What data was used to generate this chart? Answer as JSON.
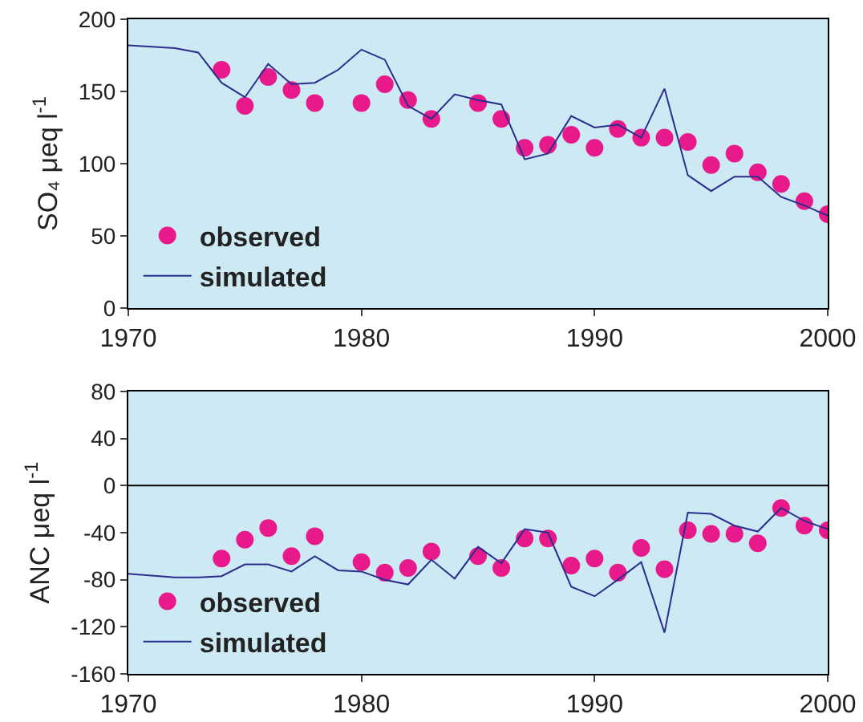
{
  "chart_data": [
    {
      "type": "line",
      "ylabel": "SO₄ μeq l$^{-1}$",
      "xlim": [
        1970,
        2000
      ],
      "xticks": [
        1970,
        1980,
        1990,
        2000
      ],
      "ylim": [
        0,
        200
      ],
      "yticks": [
        0,
        50,
        100,
        150,
        200
      ],
      "grid": false,
      "legend": "bottom left",
      "series": [
        {
          "name": "observed",
          "type": "scatter",
          "marker": "circle",
          "color": "#e8198b",
          "x": [
            1974,
            1975,
            1976,
            1977,
            1978,
            1980,
            1981,
            1982,
            1983,
            1985,
            1986,
            1987,
            1988,
            1989,
            1990,
            1991,
            1992,
            1993,
            1994,
            1995,
            1996,
            1997,
            1998,
            1999,
            2000
          ],
          "values": [
            165,
            140,
            160,
            151,
            142,
            142,
            155,
            144,
            131,
            142,
            131,
            111,
            113,
            120,
            111,
            124,
            118,
            118,
            115,
            99,
            107,
            94,
            86,
            74,
            65
          ]
        },
        {
          "name": "simulated",
          "type": "line",
          "line_style": "solid",
          "color": "#2b2e8c",
          "x": [
            1970,
            1972,
            1973,
            1974,
            1975,
            1976,
            1977,
            1978,
            1979,
            1980,
            1981,
            1982,
            1983,
            1984,
            1985,
            1986,
            1987,
            1988,
            1989,
            1990,
            1991,
            1992,
            1993,
            1994,
            1995,
            1996,
            1997,
            1998,
            1999,
            2000
          ],
          "values": [
            182,
            180,
            177,
            156,
            146,
            169,
            155,
            156,
            165,
            179,
            172,
            140,
            131,
            148,
            144,
            141,
            103,
            107,
            133,
            125,
            127,
            118,
            152,
            92,
            81,
            91,
            91,
            77,
            71,
            64
          ]
        }
      ]
    },
    {
      "type": "line",
      "ylabel": "ANC μeq l$^{-1}$",
      "xlim": [
        1970,
        2000
      ],
      "xticks": [
        1970,
        1980,
        1990,
        2000
      ],
      "ylim": [
        -160,
        80
      ],
      "yticks": [
        -160,
        -120,
        -80,
        -40,
        0,
        40,
        80
      ],
      "grid": false,
      "legend": "bottom left",
      "ref_lines": [
        {
          "axis": "y",
          "value": 0,
          "color": "#000000"
        }
      ],
      "series": [
        {
          "name": "observed",
          "type": "scatter",
          "marker": "circle",
          "color": "#e8198b",
          "x": [
            1974,
            1975,
            1976,
            1977,
            1978,
            1980,
            1981,
            1982,
            1983,
            1985,
            1986,
            1987,
            1988,
            1989,
            1990,
            1991,
            1992,
            1993,
            1994,
            1995,
            1996,
            1997,
            1998,
            1999,
            2000
          ],
          "values": [
            -62,
            -46,
            -36,
            -60,
            -43,
            -65,
            -74,
            -70,
            -56,
            -60,
            -70,
            -45,
            -45,
            -68,
            -62,
            -74,
            -53,
            -71,
            -38,
            -41,
            -41,
            -49,
            -19,
            -34,
            -38
          ]
        },
        {
          "name": "simulated",
          "type": "line",
          "line_style": "solid",
          "color": "#2b2e8c",
          "x": [
            1970,
            1972,
            1973,
            1974,
            1975,
            1976,
            1977,
            1978,
            1979,
            1980,
            1981,
            1982,
            1983,
            1984,
            1985,
            1986,
            1987,
            1988,
            1989,
            1990,
            1991,
            1992,
            1993,
            1994,
            1995,
            1996,
            1997,
            1998,
            1999,
            2000
          ],
          "values": [
            -75,
            -78,
            -78,
            -77,
            -67,
            -67,
            -73,
            -60,
            -72,
            -73,
            -80,
            -84,
            -63,
            -79,
            -52,
            -66,
            -37,
            -40,
            -86,
            -94,
            -80,
            -65,
            -125,
            -23,
            -24,
            -34,
            -39,
            -19,
            -30,
            -37
          ]
        }
      ]
    }
  ]
}
